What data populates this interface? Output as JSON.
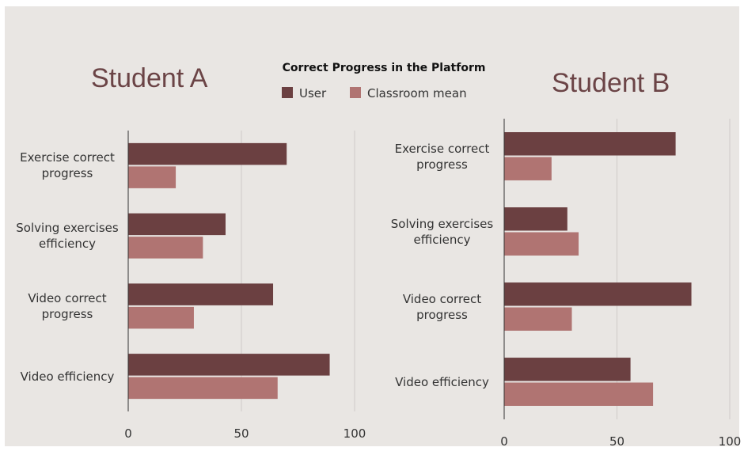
{
  "title": "Correct Progress in the Platform",
  "legend": [
    {
      "name": "User",
      "color": "#6b4041"
    },
    {
      "name": "Classroom mean",
      "color": "#b07472"
    }
  ],
  "chart_data": [
    {
      "type": "barh",
      "title": "Student A",
      "categories": [
        "Exercise correct progress",
        "Solving exercises efficiency",
        "Video correct progress",
        "Video efficiency"
      ],
      "series": [
        {
          "values": [
            70,
            43,
            64,
            89
          ]
        },
        {
          "values": [
            21,
            33,
            29,
            66
          ]
        }
      ],
      "xlim": [
        0,
        100
      ],
      "xticks": [
        0,
        50,
        100
      ],
      "grid": true
    },
    {
      "type": "barh",
      "title": "Student B",
      "categories": [
        "Exercise correct progress",
        "Solving exercises efficiency",
        "Video correct progress",
        "Video efficiency"
      ],
      "series": [
        {
          "values": [
            76,
            28,
            83,
            56
          ]
        },
        {
          "values": [
            21,
            33,
            30,
            66
          ]
        }
      ],
      "xlim": [
        0,
        100
      ],
      "xticks": [
        0,
        50,
        100
      ],
      "grid": true
    }
  ]
}
